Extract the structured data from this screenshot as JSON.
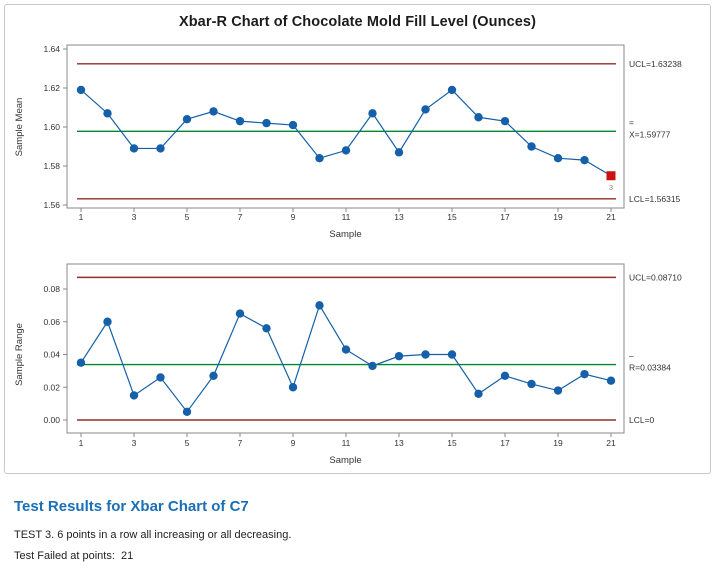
{
  "panel": {
    "title": "Xbar-R Chart of Chocolate Mold Fill Level (Ounces)"
  },
  "colors": {
    "series_blue": "#1560A8",
    "limit_red": "#942D28",
    "center_green": "#008732",
    "fail_red": "#CC1111",
    "fail_label_gray": "#8C7F6F",
    "frame_gray": "#8A8A8A",
    "text_dark": "#333333",
    "heading_blue": "#1B6FB5"
  },
  "chart_data": [
    {
      "type": "line",
      "xlabel": "Sample",
      "ylabel": "Sample Mean",
      "x": [
        1,
        2,
        3,
        4,
        5,
        6,
        7,
        8,
        9,
        10,
        11,
        12,
        13,
        14,
        15,
        16,
        17,
        18,
        19,
        20,
        21
      ],
      "values": [
        1.619,
        1.607,
        1.589,
        1.589,
        1.604,
        1.608,
        1.603,
        1.602,
        1.601,
        1.584,
        1.588,
        1.607,
        1.587,
        1.609,
        1.619,
        1.605,
        1.603,
        1.59,
        1.584,
        1.583,
        1.575
      ],
      "ylim": [
        1.56,
        1.64
      ],
      "yticks": [
        1.64,
        1.62,
        1.6,
        1.58,
        1.56
      ],
      "ytick_labels": [
        "1.64",
        "1.62",
        "1.60",
        "1.58",
        "1.56"
      ],
      "xticks": [
        1,
        3,
        5,
        7,
        9,
        11,
        13,
        15,
        17,
        19,
        21
      ],
      "ucl": 1.63238,
      "center": 1.59777,
      "lcl": 1.56315,
      "labels": {
        "ucl": "UCL=1.63238",
        "center_bar": "=",
        "center": "X=1.59777",
        "lcl": "LCL=1.56315"
      },
      "fail_points": [
        {
          "x": 21,
          "label": "3"
        }
      ]
    },
    {
      "type": "line",
      "xlabel": "Sample",
      "ylabel": "Sample Range",
      "x": [
        1,
        2,
        3,
        4,
        5,
        6,
        7,
        8,
        9,
        10,
        11,
        12,
        13,
        14,
        15,
        16,
        17,
        18,
        19,
        20,
        21
      ],
      "values": [
        0.035,
        0.06,
        0.015,
        0.026,
        0.005,
        0.027,
        0.065,
        0.056,
        0.02,
        0.07,
        0.043,
        0.033,
        0.039,
        0.04,
        0.04,
        0.016,
        0.027,
        0.022,
        0.018,
        0.028,
        0.024
      ],
      "ylim": [
        0.0,
        0.08
      ],
      "yticks": [
        0.08,
        0.06,
        0.04,
        0.02,
        0.0
      ],
      "ytick_labels": [
        "0.08",
        "0.06",
        "0.04",
        "0.02",
        "0.00"
      ],
      "xticks": [
        1,
        3,
        5,
        7,
        9,
        11,
        13,
        15,
        17,
        19,
        21
      ],
      "ucl": 0.0871,
      "center": 0.03384,
      "lcl": 0,
      "labels": {
        "ucl": "UCL=0.08710",
        "center_bar": "–",
        "center": "R=0.03384",
        "lcl": "LCL=0"
      },
      "fail_points": []
    }
  ],
  "test_results": {
    "heading": "Test Results for Xbar Chart of C7",
    "lines": [
      "TEST 3. 6 points in a row all increasing or all decreasing.",
      "Test Failed at points:  21"
    ]
  }
}
